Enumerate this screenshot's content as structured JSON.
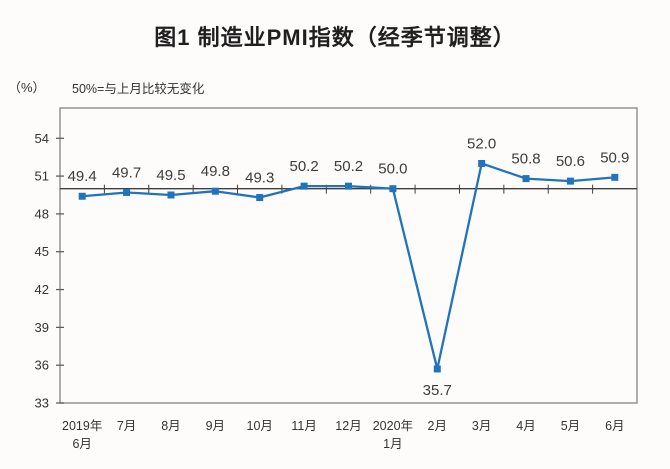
{
  "title": "图1 制造业PMI指数（经季节调整）",
  "unit_label": "（%）",
  "note": "50%=与上月比较无变化",
  "colors": {
    "line": "#2173bc",
    "marker": "#2173bc",
    "ref_line": "#3f3f3f",
    "border": "#8c8c8c",
    "tick": "#555555",
    "text": "#333333",
    "label_text": "#3d3d3d"
  },
  "chart_data": {
    "type": "line",
    "title": "图1 制造业PMI指数（经季节调整）",
    "xlabel": "",
    "ylabel": "（%）",
    "annotation": "50%=与上月比较无变化",
    "categories": [
      "2019年\n6月",
      "7月",
      "8月",
      "9月",
      "10月",
      "11月",
      "12月",
      "2020年\n1月",
      "2月",
      "3月",
      "4月",
      "5月",
      "6月"
    ],
    "values": [
      49.4,
      49.7,
      49.5,
      49.8,
      49.3,
      50.2,
      50.2,
      50.0,
      35.7,
      52.0,
      50.8,
      50.6,
      50.9
    ],
    "ylim": [
      33,
      56.4
    ],
    "yticks": [
      33,
      36,
      39,
      42,
      45,
      48,
      51,
      54
    ],
    "ref_line": 50,
    "grid": false,
    "legend": "none",
    "marker": "square",
    "label_below_threshold": 45
  }
}
